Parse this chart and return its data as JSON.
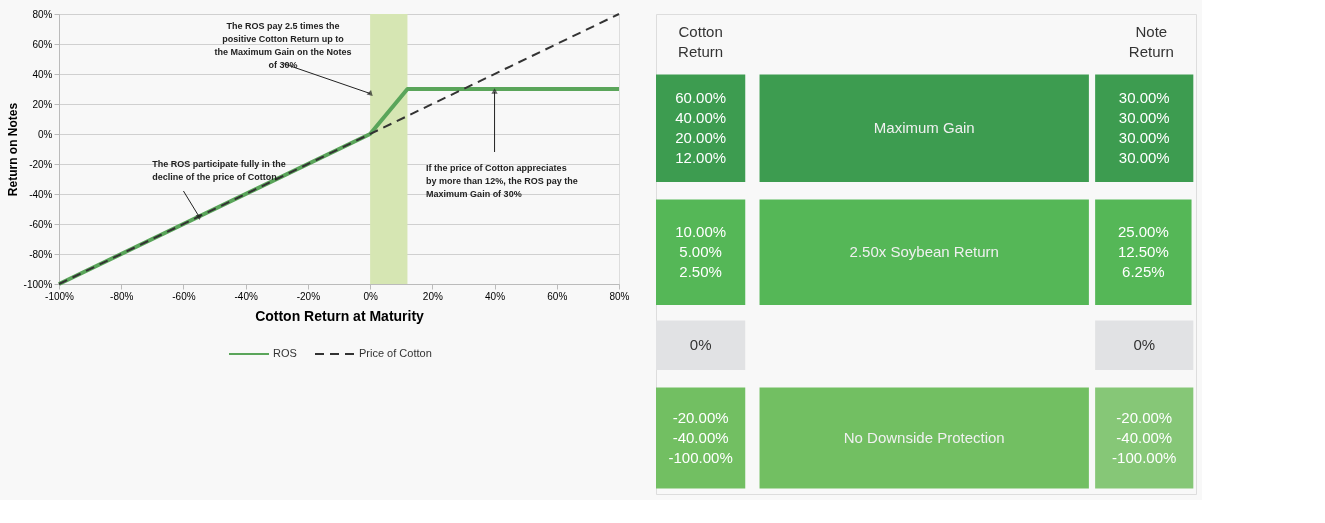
{
  "chart_data": [
    {
      "type": "line",
      "xlabel": "Cotton Return at Maturity",
      "ylabel": "Return on Notes",
      "series": [
        {
          "name": "ROS",
          "color": "#5aa55a",
          "line_style": "solid",
          "x": [
            -100,
            0,
            12,
            80
          ],
          "values": [
            -100,
            0,
            30,
            30
          ]
        },
        {
          "name": "Price of Cotton",
          "color": "#333333",
          "line_style": "dashed",
          "x": [
            -100,
            80
          ],
          "values": [
            -100,
            80
          ]
        }
      ],
      "xlim": [
        -100,
        80
      ],
      "xticks": [
        {
          "value": -100,
          "label": "-100%"
        },
        {
          "value": -80,
          "label": "-80%"
        },
        {
          "value": -60,
          "label": "-60%"
        },
        {
          "value": -40,
          "label": "-40%"
        },
        {
          "value": -20,
          "label": "-20%"
        },
        {
          "value": 0,
          "label": "0%"
        },
        {
          "value": 20,
          "label": "20%"
        },
        {
          "value": 40,
          "label": "40%"
        },
        {
          "value": 60,
          "label": "60%"
        },
        {
          "value": 80,
          "label": "80%"
        }
      ],
      "ylim": [
        -100,
        80
      ],
      "yticks": [
        {
          "value": -100,
          "label": "-100%"
        },
        {
          "value": -80,
          "label": "-80%"
        },
        {
          "value": -60,
          "label": "-60%"
        },
        {
          "value": -40,
          "label": "-40%"
        },
        {
          "value": -20,
          "label": "-20%"
        },
        {
          "value": 0,
          "label": "0%"
        },
        {
          "value": 20,
          "label": "20%"
        },
        {
          "value": 40,
          "label": "40%"
        },
        {
          "value": 60,
          "label": "60%"
        },
        {
          "value": 80,
          "label": "80%"
        }
      ],
      "bands": [
        {
          "axis": "x",
          "from": 0,
          "to": 12,
          "color": "#d6e6b3"
        }
      ],
      "annotations": [
        {
          "text": "The ROS pay 2.5 times the positive Cotton Return up to the Maximum Gain on the Notes of 30%",
          "x": 0,
          "y": 27
        },
        {
          "text": "The ROS participate fully in the decline of the price of Cotton",
          "x": -55,
          "y": -55
        },
        {
          "text": "If the price of Cotton appreciates by more than 12%, the ROS pay the Maximum Gain of 30%",
          "x": 40,
          "y": 28
        }
      ],
      "grid": "y",
      "legend": "bottom"
    },
    {
      "type": "other",
      "annotations": [
        "Cotton\nReturn",
        "Note\nReturn",
        "60.00%\n40.00%\n20.00%\n12.00%",
        "Maximum Gain",
        "30.00%\n30.00%\n30.00%\n30.00%",
        "10.00%\n5.00%\n2.50%",
        "2.50x Soybean Return",
        "25.00%\n12.50%\n6.25%",
        "0%",
        "0%",
        "-20.00%\n-40.00%\n-100.00%",
        "No Downside Protection",
        "-20.00%\n-40.00%\n-100.00%"
      ],
      "colors": [
        "#3d9c50",
        "#3d9c50",
        "#3d9c50",
        "#55b757",
        "#55b757",
        "#55b757",
        "#e1e2e4",
        "#e1e2e4",
        "#e1e2e4",
        "#72bf62",
        "#72bf62",
        "#86c777"
      ]
    }
  ]
}
